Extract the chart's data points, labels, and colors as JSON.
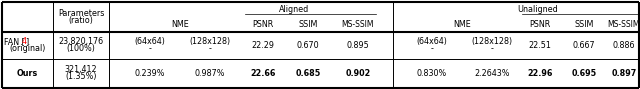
{
  "figsize": [
    6.4,
    0.89
  ],
  "dpi": 100,
  "header_aligned_label": "Aligned",
  "header_unaligned_label": "Unaligned",
  "row1_params_line1": "23,820,176",
  "row1_params_line2": "(100%)",
  "row1_nme1": "(64x64)",
  "row1_nme2": "(128x128)",
  "row1_nme1b": "-",
  "row1_nme2b": "-",
  "row1_aligned_psnr": "22.29",
  "row1_aligned_ssim": "0.670",
  "row1_aligned_msssim": "0.895",
  "row1_unme1": "(64x64)",
  "row1_unme2": "(128x128)",
  "row1_unme1b": "-",
  "row1_unme2b": "-",
  "row1_unaligned_psnr": "22.51",
  "row1_unaligned_ssim": "0.667",
  "row1_unaligned_msssim": "0.886",
  "row2_params_line1": "321,412",
  "row2_params_line2": "(1.35%)",
  "row2_nme1": "0.239%",
  "row2_nme2": "0.987%",
  "row2_aligned_psnr": "22.66",
  "row2_aligned_ssim": "0.685",
  "row2_aligned_msssim": "0.902",
  "row2_unme1": "0.830%",
  "row2_unme2": "2.2643%",
  "row2_unaligned_psnr": "22.96",
  "row2_unaligned_ssim": "0.695",
  "row2_unaligned_msssim": "0.897",
  "bg_color": "#f0f0f0",
  "table_bg": "#ffffff",
  "red_color": "#ff0000",
  "fs": 5.8,
  "fsh": 5.8
}
